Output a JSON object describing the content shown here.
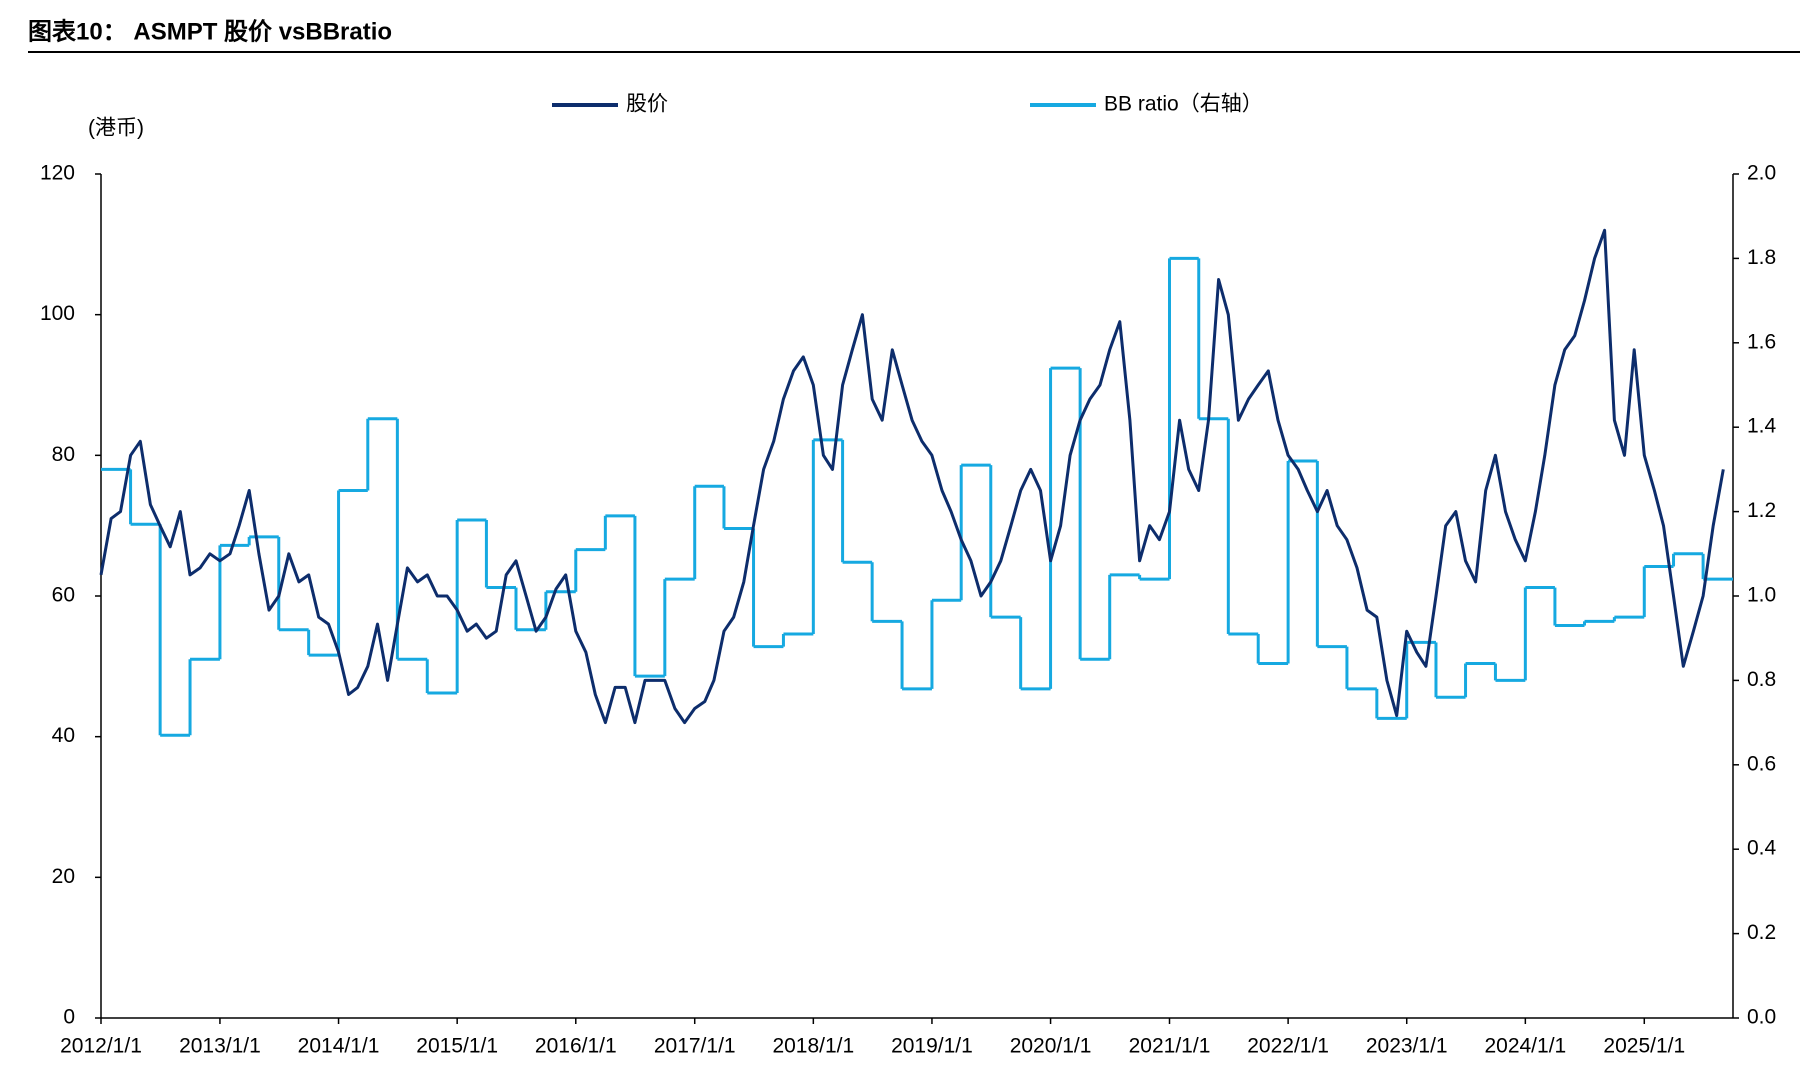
{
  "chart_data": {
    "type": "line",
    "title": "图表10： ASMPT 股价 vsBBratio",
    "y_label": "(港币)",
    "xlim": [
      "2012/1/1",
      "2025/10/1"
    ],
    "xticks": [
      "2012/1/1",
      "2013/1/1",
      "2014/1/1",
      "2015/1/1",
      "2016/1/1",
      "2017/1/1",
      "2018/1/1",
      "2019/1/1",
      "2020/1/1",
      "2021/1/1",
      "2022/1/1",
      "2023/1/1",
      "2024/1/1",
      "2025/1/1"
    ],
    "ylim": [
      0,
      120
    ],
    "yticks": [
      0,
      20,
      40,
      60,
      80,
      100,
      120
    ],
    "y2lim": [
      0,
      2
    ],
    "y2ticks": [
      {
        "value": 0,
        "label": "0.0"
      },
      {
        "value": 0.2,
        "label": "0.2"
      },
      {
        "value": 0.4,
        "label": "0.4"
      },
      {
        "value": 0.6,
        "label": "0.6"
      },
      {
        "value": 0.8,
        "label": "0.8"
      },
      {
        "value": 1,
        "label": "1.0"
      },
      {
        "value": 1.2,
        "label": "1.2"
      },
      {
        "value": 1.4,
        "label": "1.4"
      },
      {
        "value": 1.6,
        "label": "1.6"
      },
      {
        "value": 1.8,
        "label": "1.8"
      },
      {
        "value": 2,
        "label": "2.0"
      }
    ],
    "series": [
      {
        "name": "股价",
        "color": "#0d2d6c",
        "axis": "y",
        "style": "line",
        "x": [
          "2012/1/1",
          "2012/2/1",
          "2012/3/1",
          "2012/4/1",
          "2012/5/1",
          "2012/6/1",
          "2012/7/1",
          "2012/8/1",
          "2012/9/1",
          "2012/10/1",
          "2012/11/1",
          "2012/12/1",
          "2013/1/1",
          "2013/2/1",
          "2013/3/1",
          "2013/4/1",
          "2013/5/1",
          "2013/6/1",
          "2013/7/1",
          "2013/8/1",
          "2013/9/1",
          "2013/10/1",
          "2013/11/1",
          "2013/12/1",
          "2014/1/1",
          "2014/2/1",
          "2014/3/1",
          "2014/4/1",
          "2014/5/1",
          "2014/6/1",
          "2014/7/1",
          "2014/8/1",
          "2014/9/1",
          "2014/10/1",
          "2014/11/1",
          "2014/12/1",
          "2015/1/1",
          "2015/2/1",
          "2015/3/1",
          "2015/4/1",
          "2015/5/1",
          "2015/6/1",
          "2015/7/1",
          "2015/8/1",
          "2015/9/1",
          "2015/10/1",
          "2015/11/1",
          "2015/12/1",
          "2016/1/1",
          "2016/2/1",
          "2016/3/1",
          "2016/4/1",
          "2016/5/1",
          "2016/6/1",
          "2016/7/1",
          "2016/8/1",
          "2016/9/1",
          "2016/10/1",
          "2016/11/1",
          "2016/12/1",
          "2017/1/1",
          "2017/2/1",
          "2017/3/1",
          "2017/4/1",
          "2017/5/1",
          "2017/6/1",
          "2017/7/1",
          "2017/8/1",
          "2017/9/1",
          "2017/10/1",
          "2017/11/1",
          "2017/12/1",
          "2018/1/1",
          "2018/2/1",
          "2018/3/1",
          "2018/4/1",
          "2018/5/1",
          "2018/6/1",
          "2018/7/1",
          "2018/8/1",
          "2018/9/1",
          "2018/10/1",
          "2018/11/1",
          "2018/12/1",
          "2019/1/1",
          "2019/2/1",
          "2019/3/1",
          "2019/4/1",
          "2019/5/1",
          "2019/6/1",
          "2019/7/1",
          "2019/8/1",
          "2019/9/1",
          "2019/10/1",
          "2019/11/1",
          "2019/12/1",
          "2020/1/1",
          "2020/2/1",
          "2020/3/1",
          "2020/4/1",
          "2020/5/1",
          "2020/6/1",
          "2020/7/1",
          "2020/8/1",
          "2020/9/1",
          "2020/10/1",
          "2020/11/1",
          "2020/12/1",
          "2021/1/1",
          "2021/2/1",
          "2021/3/1",
          "2021/4/1",
          "2021/5/1",
          "2021/6/1",
          "2021/7/1",
          "2021/8/1",
          "2021/9/1",
          "2021/10/1",
          "2021/11/1",
          "2021/12/1",
          "2022/1/1",
          "2022/2/1",
          "2022/3/1",
          "2022/4/1",
          "2022/5/1",
          "2022/6/1",
          "2022/7/1",
          "2022/8/1",
          "2022/9/1",
          "2022/10/1",
          "2022/11/1",
          "2022/12/1",
          "2023/1/1",
          "2023/2/1",
          "2023/3/1",
          "2023/4/1",
          "2023/5/1",
          "2023/6/1",
          "2023/7/1",
          "2023/8/1",
          "2023/9/1",
          "2023/10/1",
          "2023/11/1",
          "2023/12/1",
          "2024/1/1",
          "2024/2/1",
          "2024/3/1",
          "2024/4/1",
          "2024/5/1",
          "2024/6/1",
          "2024/7/1",
          "2024/8/1",
          "2024/9/1",
          "2024/10/1",
          "2024/11/1",
          "2024/12/1",
          "2025/1/1",
          "2025/2/1",
          "2025/3/1",
          "2025/4/1",
          "2025/5/1",
          "2025/6/1",
          "2025/7/1",
          "2025/8/1",
          "2025/9/1"
        ],
        "values": [
          63,
          71,
          72,
          80,
          82,
          73,
          70,
          67,
          72,
          63,
          64,
          66,
          65,
          66,
          70,
          75,
          66,
          58,
          60,
          66,
          62,
          63,
          57,
          56,
          52,
          46,
          47,
          50,
          56,
          48,
          56,
          64,
          62,
          63,
          60,
          60,
          58,
          55,
          56,
          54,
          55,
          63,
          65,
          60,
          55,
          57,
          61,
          63,
          55,
          52,
          46,
          42,
          47,
          47,
          42,
          48,
          48,
          48,
          44,
          42,
          44,
          45,
          48,
          55,
          57,
          62,
          70,
          78,
          82,
          88,
          92,
          94,
          90,
          80,
          78,
          90,
          95,
          100,
          88,
          85,
          95,
          90,
          85,
          82,
          80,
          75,
          72,
          68,
          65,
          60,
          62,
          65,
          70,
          75,
          78,
          75,
          65,
          70,
          80,
          85,
          88,
          90,
          95,
          99,
          85,
          65,
          70,
          68,
          72,
          85,
          78,
          75,
          85,
          105,
          100,
          85,
          88,
          90,
          92,
          85,
          80,
          78,
          75,
          72,
          75,
          70,
          68,
          64,
          58,
          57,
          48,
          43,
          55,
          52,
          50,
          60,
          70,
          72,
          65,
          62,
          75,
          80,
          72,
          68,
          65,
          72,
          80,
          90,
          95,
          97,
          102,
          108,
          112,
          85,
          80,
          95,
          80,
          75,
          70,
          60,
          50,
          55,
          60,
          70,
          78
        ]
      },
      {
        "name": "BB ratio（右轴）",
        "color": "#16a9e1",
        "axis": "y2",
        "style": "step",
        "x": [
          "2012/1/1",
          "2012/4/1",
          "2012/7/1",
          "2012/10/1",
          "2013/1/1",
          "2013/4/1",
          "2013/7/1",
          "2013/10/1",
          "2014/1/1",
          "2014/4/1",
          "2014/7/1",
          "2014/10/1",
          "2015/1/1",
          "2015/4/1",
          "2015/7/1",
          "2015/10/1",
          "2016/1/1",
          "2016/4/1",
          "2016/7/1",
          "2016/10/1",
          "2017/1/1",
          "2017/4/1",
          "2017/7/1",
          "2017/10/1",
          "2018/1/1",
          "2018/4/1",
          "2018/7/1",
          "2018/10/1",
          "2019/1/1",
          "2019/4/1",
          "2019/7/1",
          "2019/10/1",
          "2020/1/1",
          "2020/4/1",
          "2020/7/1",
          "2020/10/1",
          "2021/1/1",
          "2021/4/1",
          "2021/7/1",
          "2021/10/1",
          "2022/1/1",
          "2022/4/1",
          "2022/7/1",
          "2022/10/1",
          "2023/1/1",
          "2023/4/1",
          "2023/7/1",
          "2023/10/1",
          "2024/1/1",
          "2024/4/1",
          "2024/7/1",
          "2024/10/1",
          "2025/1/1",
          "2025/4/1",
          "2025/7/1"
        ],
        "values": [
          1.3,
          1.17,
          0.67,
          0.85,
          1.12,
          1.14,
          0.92,
          0.86,
          1.25,
          1.42,
          0.85,
          0.77,
          1.18,
          1.02,
          0.92,
          1.01,
          1.11,
          1.19,
          0.81,
          1.04,
          1.26,
          1.16,
          0.88,
          0.91,
          1.37,
          1.08,
          0.94,
          0.78,
          0.99,
          1.31,
          0.95,
          0.78,
          1.54,
          0.85,
          1.05,
          1.04,
          1.8,
          1.42,
          0.91,
          0.84,
          1.32,
          0.88,
          0.78,
          0.71,
          0.89,
          0.76,
          0.84,
          0.8,
          1.02,
          0.93,
          0.94,
          0.95,
          1.07,
          1.1,
          1.04
        ]
      }
    ]
  }
}
